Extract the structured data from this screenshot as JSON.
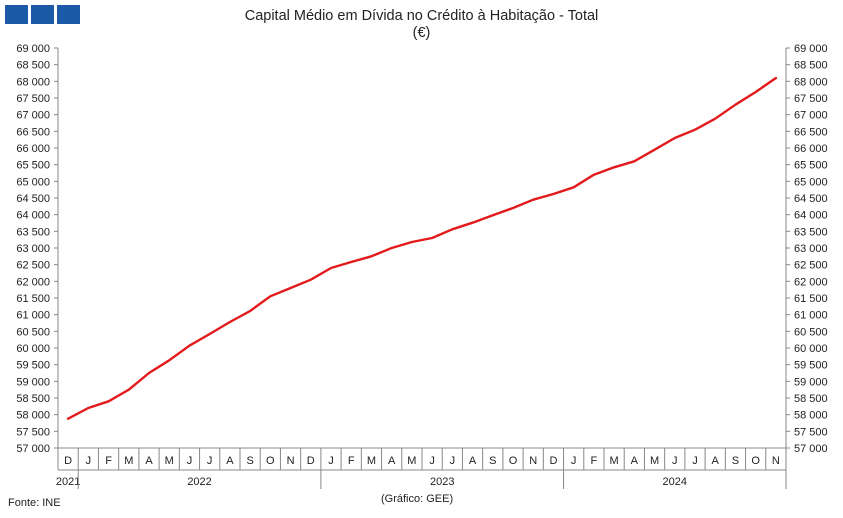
{
  "header": {
    "title": "Capital Médio em Dívida no Crédito à Habitação - Total",
    "subtitle": "(€)"
  },
  "footer": {
    "source": "Fonte: INE",
    "credit": "(Gráfico: GEE)"
  },
  "colors": {
    "line": "#e31a1c",
    "logo": "#1b5aa6",
    "axis": "#888888"
  },
  "chart_data": {
    "type": "line",
    "title": "Capital Médio em Dívida no Crédito à Habitação - Total",
    "subtitle": "(€)",
    "ylim": [
      57000,
      69000
    ],
    "y_ticks": [
      "57 000",
      "57 500",
      "58 000",
      "58 500",
      "59 000",
      "59 500",
      "60 000",
      "60 500",
      "61 000",
      "61 500",
      "62 000",
      "62 500",
      "63 000",
      "63 500",
      "64 000",
      "64 500",
      "65 000",
      "65 500",
      "66 000",
      "66 500",
      "67 000",
      "67 500",
      "68 000",
      "68 500",
      "69 000"
    ],
    "grid": false,
    "month_labels": [
      "D",
      "J",
      "F",
      "M",
      "A",
      "M",
      "J",
      "J",
      "A",
      "S",
      "O",
      "N",
      "D",
      "J",
      "F",
      "M",
      "A",
      "M",
      "J",
      "J",
      "A",
      "S",
      "O",
      "N",
      "D",
      "J",
      "F",
      "M",
      "A",
      "M",
      "J",
      "J",
      "A",
      "S",
      "O",
      "N"
    ],
    "year_labels": [
      {
        "label": "2021",
        "start": 0,
        "end": 0
      },
      {
        "label": "2022",
        "start": 1,
        "end": 12
      },
      {
        "label": "2023",
        "start": 13,
        "end": 24
      },
      {
        "label": "2024",
        "start": 25,
        "end": 35
      }
    ],
    "series": [
      {
        "values": [
          57880,
          58200,
          58400,
          58750,
          59250,
          59630,
          60070,
          60420,
          60780,
          61110,
          61550,
          61800,
          62050,
          62400,
          62580,
          62750,
          63000,
          63180,
          63300,
          63560,
          63760,
          63980,
          64200,
          64450,
          64620,
          64820,
          65200,
          65420,
          65600,
          65950,
          66300,
          66550,
          66880,
          67300,
          67680,
          68100
        ]
      }
    ]
  }
}
